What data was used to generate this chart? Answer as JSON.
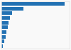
{
  "values": [
    475,
    165,
    80,
    65,
    55,
    46,
    38,
    32,
    23,
    12
  ],
  "bar_color": "#2271b3",
  "background_color": "#f9f9f9",
  "border_color": "#dddddd",
  "ylim": [
    -0.5,
    9.5
  ],
  "xlim": [
    0,
    510
  ],
  "bar_height": 0.72
}
